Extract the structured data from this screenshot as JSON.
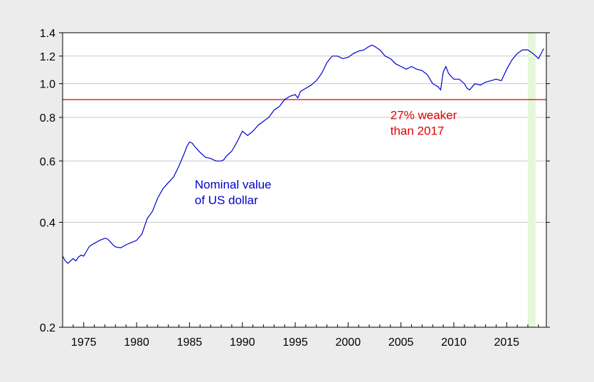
{
  "chart_data": {
    "type": "line",
    "xlim": [
      1973,
      2018.75
    ],
    "ylim": [
      0.2,
      1.4
    ],
    "y_scale": "log",
    "grid": true,
    "x_ticks": [
      1975,
      1980,
      1985,
      1990,
      1995,
      2000,
      2005,
      2010,
      2015
    ],
    "x_tick_labels": [
      "1975",
      "1980",
      "1985",
      "1990",
      "1995",
      "2000",
      "2005",
      "2010",
      "2015"
    ],
    "y_ticks": [
      0.2,
      0.4,
      0.6,
      0.8,
      1.0,
      1.2,
      1.4
    ],
    "y_tick_labels": [
      "0.2",
      "0.4",
      "0.6",
      "0.8",
      "1.0",
      "1.2",
      "1.4"
    ],
    "series": [
      {
        "color": "#0000cc",
        "x": [
          1973.0,
          1973.25,
          1973.5,
          1973.75,
          1974.0,
          1974.25,
          1974.5,
          1974.75,
          1975.0,
          1975.25,
          1975.5,
          1975.75,
          1976.0,
          1976.5,
          1977.0,
          1977.25,
          1977.5,
          1977.75,
          1978.0,
          1978.5,
          1979.0,
          1979.5,
          1980.0,
          1980.5,
          1981.0,
          1981.5,
          1982.0,
          1982.5,
          1983.0,
          1983.5,
          1984.0,
          1984.5,
          1984.75,
          1985.0,
          1985.25,
          1985.5,
          1986.0,
          1986.5,
          1987.0,
          1987.5,
          1988.0,
          1988.25,
          1988.5,
          1989.0,
          1989.5,
          1990.0,
          1990.5,
          1991.0,
          1991.5,
          1992.0,
          1992.5,
          1993.0,
          1993.5,
          1994.0,
          1994.5,
          1995.0,
          1995.25,
          1995.5,
          1996.0,
          1996.5,
          1997.0,
          1997.5,
          1998.0,
          1998.5,
          1999.0,
          1999.5,
          2000.0,
          2000.5,
          2001.0,
          2001.5,
          2002.0,
          2002.25,
          2002.5,
          2003.0,
          2003.5,
          2004.0,
          2004.5,
          2005.0,
          2005.5,
          2006.0,
          2006.5,
          2007.0,
          2007.5,
          2008.0,
          2008.5,
          2008.75,
          2009.0,
          2009.25,
          2009.5,
          2010.0,
          2010.5,
          2011.0,
          2011.25,
          2011.5,
          2012.0,
          2012.5,
          2013.0,
          2013.5,
          2014.0,
          2014.5,
          2015.0,
          2015.5,
          2016.0,
          2016.5,
          2017.0,
          2017.5,
          2018.0,
          2018.5
        ],
        "y": [
          0.32,
          0.31,
          0.305,
          0.31,
          0.315,
          0.31,
          0.318,
          0.322,
          0.32,
          0.33,
          0.34,
          0.345,
          0.348,
          0.355,
          0.36,
          0.358,
          0.352,
          0.345,
          0.34,
          0.338,
          0.345,
          0.35,
          0.355,
          0.37,
          0.41,
          0.43,
          0.47,
          0.5,
          0.52,
          0.54,
          0.58,
          0.63,
          0.66,
          0.68,
          0.675,
          0.66,
          0.635,
          0.615,
          0.61,
          0.6,
          0.6,
          0.605,
          0.62,
          0.64,
          0.68,
          0.73,
          0.71,
          0.73,
          0.76,
          0.78,
          0.8,
          0.84,
          0.86,
          0.9,
          0.92,
          0.93,
          0.91,
          0.95,
          0.97,
          0.99,
          1.02,
          1.07,
          1.15,
          1.2,
          1.2,
          1.18,
          1.19,
          1.22,
          1.24,
          1.25,
          1.28,
          1.29,
          1.28,
          1.25,
          1.2,
          1.18,
          1.14,
          1.12,
          1.1,
          1.12,
          1.1,
          1.09,
          1.06,
          1.0,
          0.98,
          0.96,
          1.08,
          1.12,
          1.07,
          1.03,
          1.03,
          1.0,
          0.97,
          0.96,
          1.0,
          0.99,
          1.01,
          1.02,
          1.03,
          1.02,
          1.1,
          1.17,
          1.22,
          1.25,
          1.25,
          1.22,
          1.18,
          1.26
        ]
      }
    ],
    "reference_line": {
      "y": 0.9,
      "color": "#dd0000"
    },
    "shaded_region": {
      "x": [
        2017.0,
        2017.75
      ],
      "color": "#e6f7d9"
    },
    "annotations": [
      {
        "text_lines": [
          "Nominal value",
          "of US dollar"
        ],
        "x": 1985.5,
        "y": 0.5,
        "color": "#0000cc"
      },
      {
        "text_lines": [
          "27% weaker",
          "than 2017"
        ],
        "x": 2004,
        "y": 0.79,
        "color": "#dd0000"
      }
    ]
  }
}
